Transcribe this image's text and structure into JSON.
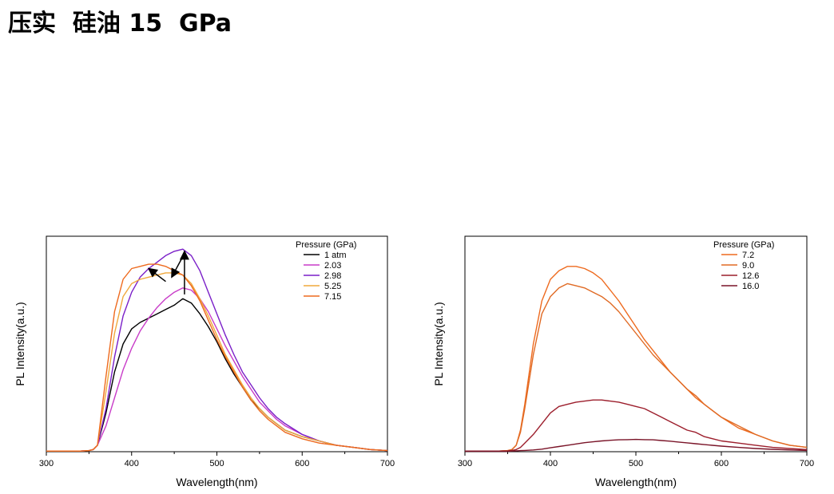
{
  "page_title": "压实  硅油 15  GPa",
  "chart_data": [
    {
      "type": "line",
      "xlabel": "Wavelength(nm)",
      "ylabel": "PL Intensity(a.u.)",
      "xlim": [
        300,
        700
      ],
      "ylim": [
        0,
        1.0
      ],
      "x_ticks": [
        300,
        400,
        500,
        600,
        700
      ],
      "y_tick_labels": false,
      "grid": false,
      "legend_title": "Pressure (GPa)",
      "legend_position": "top-right",
      "annotations": "arrows indicating intensity increase then blue shift",
      "series": [
        {
          "name": "1 atm",
          "color": "#000000",
          "x": [
            300,
            340,
            350,
            355,
            360,
            370,
            380,
            390,
            400,
            410,
            420,
            430,
            440,
            450,
            460,
            470,
            480,
            490,
            500,
            510,
            520,
            530,
            540,
            550,
            560,
            570,
            580,
            600,
            620,
            640,
            660,
            680,
            700
          ],
          "y": [
            0.003,
            0.003,
            0.005,
            0.01,
            0.03,
            0.18,
            0.37,
            0.5,
            0.57,
            0.6,
            0.62,
            0.64,
            0.66,
            0.68,
            0.71,
            0.69,
            0.64,
            0.58,
            0.51,
            0.43,
            0.36,
            0.3,
            0.24,
            0.2,
            0.16,
            0.13,
            0.1,
            0.07,
            0.05,
            0.03,
            0.02,
            0.01,
            0.005
          ]
        },
        {
          "name": "2.03",
          "color": "#c83cc8",
          "x": [
            300,
            340,
            350,
            355,
            360,
            370,
            380,
            390,
            400,
            410,
            420,
            430,
            440,
            450,
            460,
            470,
            480,
            490,
            500,
            510,
            520,
            530,
            540,
            550,
            560,
            570,
            580,
            600,
            620,
            640,
            660,
            680,
            700
          ],
          "y": [
            0.003,
            0.003,
            0.005,
            0.01,
            0.03,
            0.12,
            0.25,
            0.38,
            0.48,
            0.56,
            0.62,
            0.67,
            0.71,
            0.74,
            0.76,
            0.75,
            0.71,
            0.65,
            0.57,
            0.49,
            0.42,
            0.35,
            0.29,
            0.23,
            0.19,
            0.15,
            0.12,
            0.08,
            0.05,
            0.03,
            0.02,
            0.01,
            0.005
          ]
        },
        {
          "name": "2.98",
          "color": "#7a1fc8",
          "x": [
            300,
            340,
            350,
            355,
            360,
            370,
            380,
            390,
            400,
            410,
            420,
            430,
            440,
            450,
            460,
            470,
            480,
            490,
            500,
            510,
            520,
            530,
            540,
            550,
            560,
            570,
            580,
            600,
            620,
            640,
            660,
            680,
            700
          ],
          "y": [
            0.003,
            0.003,
            0.005,
            0.01,
            0.03,
            0.2,
            0.44,
            0.63,
            0.74,
            0.81,
            0.85,
            0.88,
            0.91,
            0.93,
            0.94,
            0.91,
            0.84,
            0.74,
            0.64,
            0.54,
            0.45,
            0.37,
            0.31,
            0.25,
            0.2,
            0.16,
            0.13,
            0.08,
            0.05,
            0.03,
            0.02,
            0.01,
            0.005
          ]
        },
        {
          "name": "5.25",
          "color": "#f0a83c",
          "x": [
            300,
            340,
            350,
            355,
            360,
            370,
            380,
            390,
            400,
            410,
            420,
            430,
            440,
            450,
            460,
            470,
            480,
            490,
            500,
            510,
            520,
            530,
            540,
            550,
            560,
            570,
            580,
            600,
            620,
            640,
            660,
            680,
            700
          ],
          "y": [
            0.003,
            0.003,
            0.005,
            0.01,
            0.03,
            0.28,
            0.55,
            0.72,
            0.78,
            0.8,
            0.81,
            0.82,
            0.83,
            0.83,
            0.82,
            0.78,
            0.71,
            0.63,
            0.54,
            0.45,
            0.38,
            0.31,
            0.25,
            0.2,
            0.16,
            0.13,
            0.1,
            0.07,
            0.05,
            0.03,
            0.02,
            0.01,
            0.005
          ]
        },
        {
          "name": "7.15",
          "color": "#ee6a1e",
          "x": [
            300,
            340,
            350,
            355,
            360,
            370,
            380,
            390,
            400,
            410,
            420,
            430,
            440,
            450,
            460,
            470,
            480,
            490,
            500,
            510,
            520,
            530,
            540,
            550,
            560,
            570,
            580,
            600,
            620,
            640,
            660,
            680,
            700
          ],
          "y": [
            0.003,
            0.003,
            0.005,
            0.01,
            0.03,
            0.35,
            0.65,
            0.8,
            0.85,
            0.86,
            0.87,
            0.87,
            0.86,
            0.84,
            0.82,
            0.77,
            0.7,
            0.61,
            0.52,
            0.44,
            0.37,
            0.3,
            0.24,
            0.19,
            0.15,
            0.12,
            0.09,
            0.06,
            0.04,
            0.03,
            0.02,
            0.01,
            0.005
          ]
        }
      ]
    },
    {
      "type": "line",
      "xlabel": "Wavelength(nm)",
      "ylabel": "PL Intensity(a.u.)",
      "xlim": [
        300,
        700
      ],
      "ylim": [
        0,
        1.0
      ],
      "x_ticks": [
        300,
        400,
        500,
        600,
        700
      ],
      "y_tick_labels": false,
      "grid": false,
      "legend_title": "Pressure (GPa)",
      "legend_position": "top-right",
      "series": [
        {
          "name": "7.2",
          "color": "#ee6a1e",
          "x": [
            300,
            340,
            350,
            355,
            360,
            365,
            370,
            380,
            390,
            400,
            410,
            420,
            430,
            440,
            450,
            460,
            470,
            480,
            490,
            500,
            510,
            520,
            530,
            540,
            550,
            560,
            570,
            580,
            600,
            620,
            640,
            660,
            680,
            700
          ],
          "y": [
            0.003,
            0.003,
            0.005,
            0.01,
            0.03,
            0.1,
            0.22,
            0.5,
            0.7,
            0.8,
            0.84,
            0.86,
            0.86,
            0.85,
            0.83,
            0.8,
            0.75,
            0.7,
            0.64,
            0.58,
            0.52,
            0.47,
            0.42,
            0.37,
            0.33,
            0.29,
            0.25,
            0.22,
            0.16,
            0.11,
            0.08,
            0.05,
            0.03,
            0.02
          ]
        },
        {
          "name": "9.0",
          "color": "#e06a24",
          "x": [
            300,
            340,
            350,
            355,
            360,
            365,
            370,
            380,
            390,
            400,
            410,
            420,
            430,
            440,
            450,
            460,
            470,
            480,
            490,
            500,
            510,
            520,
            530,
            540,
            550,
            560,
            570,
            580,
            600,
            620,
            640,
            660,
            680,
            700
          ],
          "y": [
            0.003,
            0.003,
            0.005,
            0.01,
            0.03,
            0.09,
            0.2,
            0.45,
            0.64,
            0.72,
            0.76,
            0.78,
            0.77,
            0.76,
            0.74,
            0.72,
            0.69,
            0.65,
            0.6,
            0.55,
            0.5,
            0.45,
            0.41,
            0.37,
            0.33,
            0.29,
            0.26,
            0.22,
            0.16,
            0.12,
            0.08,
            0.05,
            0.03,
            0.02
          ]
        },
        {
          "name": "12.6",
          "color": "#9c1e2c",
          "x": [
            300,
            340,
            350,
            355,
            360,
            365,
            370,
            380,
            390,
            400,
            410,
            420,
            430,
            440,
            450,
            460,
            470,
            480,
            490,
            500,
            510,
            520,
            530,
            540,
            550,
            560,
            570,
            580,
            600,
            620,
            640,
            660,
            680,
            700
          ],
          "y": [
            0.003,
            0.003,
            0.004,
            0.006,
            0.01,
            0.02,
            0.04,
            0.08,
            0.13,
            0.18,
            0.21,
            0.22,
            0.23,
            0.235,
            0.24,
            0.24,
            0.235,
            0.23,
            0.22,
            0.21,
            0.2,
            0.18,
            0.16,
            0.14,
            0.12,
            0.1,
            0.09,
            0.07,
            0.05,
            0.04,
            0.03,
            0.02,
            0.015,
            0.01
          ]
        },
        {
          "name": "16.0",
          "color": "#7a1428",
          "x": [
            300,
            340,
            350,
            355,
            360,
            365,
            370,
            380,
            390,
            400,
            410,
            420,
            430,
            440,
            450,
            460,
            470,
            480,
            490,
            500,
            510,
            520,
            530,
            540,
            550,
            560,
            570,
            580,
            600,
            620,
            640,
            660,
            680,
            700
          ],
          "y": [
            0.002,
            0.002,
            0.002,
            0.003,
            0.004,
            0.005,
            0.006,
            0.008,
            0.012,
            0.018,
            0.024,
            0.03,
            0.036,
            0.042,
            0.046,
            0.05,
            0.053,
            0.055,
            0.056,
            0.057,
            0.056,
            0.055,
            0.052,
            0.049,
            0.045,
            0.041,
            0.037,
            0.033,
            0.026,
            0.02,
            0.015,
            0.011,
            0.008,
            0.006
          ]
        }
      ]
    }
  ]
}
